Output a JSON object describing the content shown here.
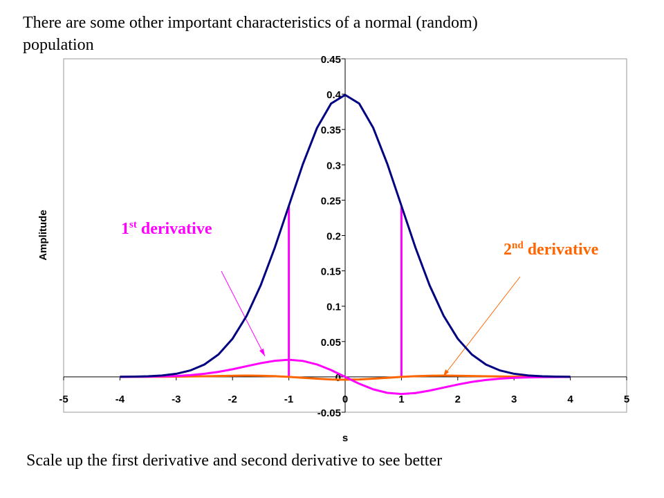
{
  "slide_title": "There are some other important characteristics of a normal (random) population",
  "footer": "Scale up the first derivative and second derivative to see better",
  "chart_data": {
    "type": "line",
    "xlabel": "s",
    "ylabel": "Amplitude",
    "x": [
      -4,
      -3.75,
      -3.5,
      -3.25,
      -3,
      -2.75,
      -2.5,
      -2.25,
      -2,
      -1.75,
      -1.5,
      -1.25,
      -1,
      -0.75,
      -0.5,
      -0.25,
      0,
      0.25,
      0.5,
      0.75,
      1,
      1.25,
      1.5,
      1.75,
      2,
      2.25,
      2.5,
      2.75,
      3,
      3.25,
      3.5,
      3.75,
      4
    ],
    "series": [
      {
        "name": "Amplitude",
        "color": "#000080",
        "values": [
          0.0001,
          0.0004,
          0.0009,
          0.002,
          0.0044,
          0.0091,
          0.0175,
          0.0317,
          0.054,
          0.0863,
          0.1295,
          0.1826,
          0.242,
          0.3011,
          0.3521,
          0.3867,
          0.3989,
          0.3867,
          0.3521,
          0.3011,
          0.242,
          0.1826,
          0.1295,
          0.0863,
          0.054,
          0.0317,
          0.0175,
          0.0091,
          0.0044,
          0.002,
          0.0009,
          0.0004,
          0.0001
        ]
      },
      {
        "name": "1st derivative",
        "color": "#ff00ff",
        "values": [
          0,
          0.0002,
          0.0003,
          0.0007,
          0.0013,
          0.0025,
          0.0044,
          0.0071,
          0.0108,
          0.0151,
          0.0194,
          0.0228,
          0.0242,
          0.0226,
          0.0176,
          0.0097,
          0,
          -0.0097,
          -0.0176,
          -0.0226,
          -0.0242,
          -0.0228,
          -0.0194,
          -0.0151,
          -0.0108,
          -0.0071,
          -0.0044,
          -0.0025,
          -0.0013,
          -0.0007,
          -0.0003,
          -0.0002,
          0
        ]
      },
      {
        "name": "2nd derivative",
        "color": "#ff6600",
        "values": [
          0,
          0.0001,
          0.0001,
          0.0002,
          0.0004,
          0.0006,
          0.0009,
          0.0013,
          0.0016,
          0.0018,
          0.0016,
          0.001,
          0,
          -0.0013,
          -0.0026,
          -0.0036,
          -0.004,
          -0.0036,
          -0.0026,
          -0.0013,
          0,
          0.001,
          0.0016,
          0.0018,
          0.0016,
          0.0013,
          0.0009,
          0.0006,
          0.0004,
          0.0002,
          0.0001,
          0.0001,
          0
        ]
      }
    ],
    "annotations": [
      {
        "num": "1",
        "sup": "st",
        "text": "derivative",
        "color": "#ff00ff"
      },
      {
        "num": "2",
        "sup": "nd",
        "text": "derivative",
        "color": "#ff6600"
      }
    ],
    "xlim": [
      -5,
      5
    ],
    "xticks": [
      -5,
      -4,
      -3,
      -2,
      -1,
      0,
      1,
      2,
      3,
      4,
      5
    ],
    "ylim": [
      -0.05,
      0.45
    ],
    "yticks": [
      -0.05,
      0,
      0.05,
      0.1,
      0.15,
      0.2,
      0.25,
      0.3,
      0.35,
      0.4,
      0.45
    ]
  }
}
